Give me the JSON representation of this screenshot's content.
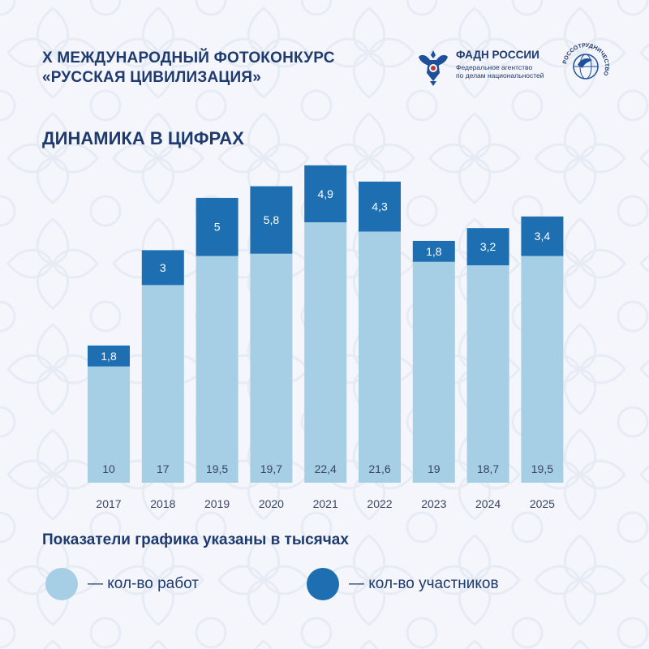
{
  "header": {
    "title_line1": "X МЕЖДУНАРОДНЫЙ ФОТОКОНКУРС",
    "title_line2": "«РУССКАЯ ЦИВИЛИЗАЦИЯ»",
    "subtitle": "ДИНАМИКА В ЦИФРАХ"
  },
  "logos": {
    "fadn_name": "ФАДН РОССИИ",
    "fadn_desc_line1": "Федеральное агентство",
    "fadn_desc_line2": "по делам национальностей",
    "rossotrudnichestvo_text": "РОССОТРУДНИЧЕСТВО"
  },
  "colors": {
    "works": "#a6cfe6",
    "participants": "#1d6fb1",
    "text": "#1e3a6e",
    "axis_text": "#3a4660"
  },
  "chart_data": {
    "type": "bar",
    "stacked": true,
    "categories": [
      "2017",
      "2018",
      "2019",
      "2020",
      "2021",
      "2022",
      "2023",
      "2024",
      "2025"
    ],
    "series": [
      {
        "name": "кол-во работ",
        "values": [
          10,
          17,
          19.5,
          19.7,
          22.4,
          21.6,
          19,
          18.7,
          19.5
        ],
        "labels": [
          "10",
          "17",
          "19,5",
          "19,7",
          "22,4",
          "21,6",
          "19",
          "18,7",
          "19,5"
        ]
      },
      {
        "name": "кол-во участников",
        "values": [
          1.8,
          3,
          5,
          5.8,
          4.9,
          4.3,
          1.8,
          3.2,
          3.4
        ],
        "labels": [
          "1,8",
          "3",
          "5",
          "5,8",
          "4,9",
          "4,3",
          "1,8",
          "3,2",
          "3,4"
        ]
      }
    ],
    "title": "ДИНАМИКА В ЦИФРАХ",
    "xlabel": "",
    "ylabel": "",
    "grid": false,
    "legend_position": "bottom"
  },
  "note": "Показатели графика указаны в тысячах",
  "legend": {
    "works": "— кол-во работ",
    "participants": "— кол-во участников"
  }
}
